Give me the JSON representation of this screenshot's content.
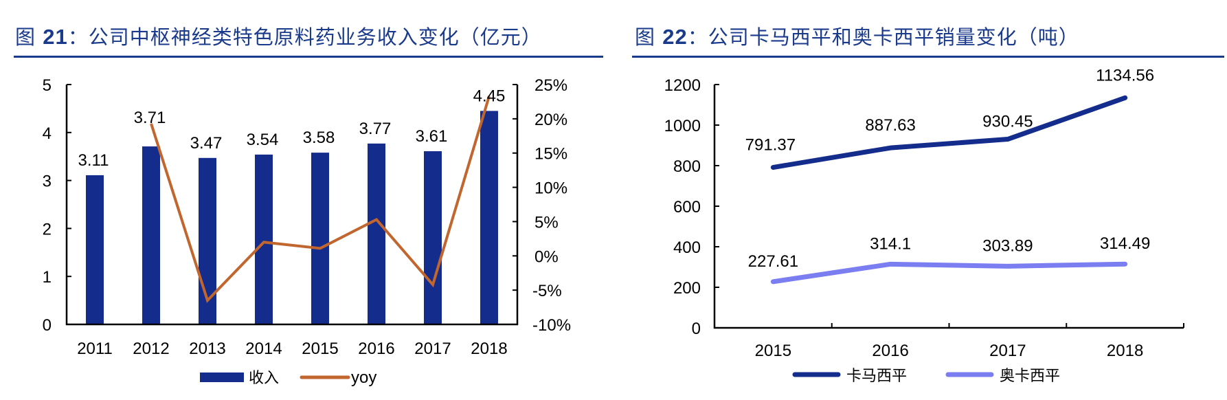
{
  "figure21": {
    "title_prefix": "图 ",
    "title_num": "21",
    "title_text": "：公司中枢神经类特色原料药业务收入变化（亿元）",
    "legend": {
      "bar_label": "收入",
      "line_label": "yoy"
    }
  },
  "figure22": {
    "title_prefix": "图 ",
    "title_num": "22",
    "title_text": "：公司卡马西平和奥卡西平销量变化（吨）",
    "legend": {
      "series1_label": "卡马西平",
      "series2_label": "奥卡西平"
    }
  },
  "colors": {
    "title": "#1a3a8c",
    "bar": "#142c8c",
    "yoy_line": "#c0662e",
    "carbamazepine": "#142c8c",
    "oxcarbazepine": "#7a7ef0"
  },
  "chart_data": [
    {
      "type": "bar",
      "title": "图 21：公司中枢神经类特色原料药业务收入变化（亿元）",
      "categories": [
        "2011",
        "2012",
        "2013",
        "2014",
        "2015",
        "2016",
        "2017",
        "2018"
      ],
      "series": [
        {
          "name": "收入",
          "type": "bar",
          "axis": "left",
          "values": [
            3.11,
            3.71,
            3.47,
            3.54,
            3.58,
            3.77,
            3.61,
            4.45
          ],
          "labels": [
            "3.11",
            "3.71",
            "3.47",
            "3.54",
            "3.58",
            "3.77",
            "3.61",
            "4.45"
          ]
        },
        {
          "name": "yoy",
          "type": "line",
          "axis": "right",
          "values": [
            null,
            19.3,
            -6.5,
            2.0,
            1.1,
            5.3,
            -4.2,
            23.3
          ]
        }
      ],
      "xlabel": "",
      "ylabel": "",
      "ylim": [
        0,
        5
      ],
      "yticks": [
        "0",
        "1",
        "2",
        "3",
        "4",
        "5"
      ],
      "y2lim": [
        -10,
        25
      ],
      "y2ticks": [
        "-10%",
        "-5%",
        "0%",
        "5%",
        "10%",
        "15%",
        "20%",
        "25%"
      ],
      "grid": false,
      "legend_position": "bottom"
    },
    {
      "type": "line",
      "title": "图 22：公司卡马西平和奥卡西平销量变化（吨）",
      "categories": [
        "2015",
        "2016",
        "2017",
        "2018"
      ],
      "series": [
        {
          "name": "卡马西平",
          "values": [
            791.37,
            887.63,
            930.45,
            1134.56
          ],
          "labels": [
            "791.37",
            "887.63",
            "930.45",
            "1134.56"
          ]
        },
        {
          "name": "奥卡西平",
          "values": [
            227.61,
            314.1,
            303.89,
            314.49
          ],
          "labels": [
            "227.61",
            "314.1",
            "303.89",
            "314.49"
          ]
        }
      ],
      "xlabel": "",
      "ylabel": "",
      "ylim": [
        0,
        1200
      ],
      "yticks": [
        "0",
        "200",
        "400",
        "600",
        "800",
        "1000",
        "1200"
      ],
      "grid": false,
      "legend_position": "bottom"
    }
  ]
}
